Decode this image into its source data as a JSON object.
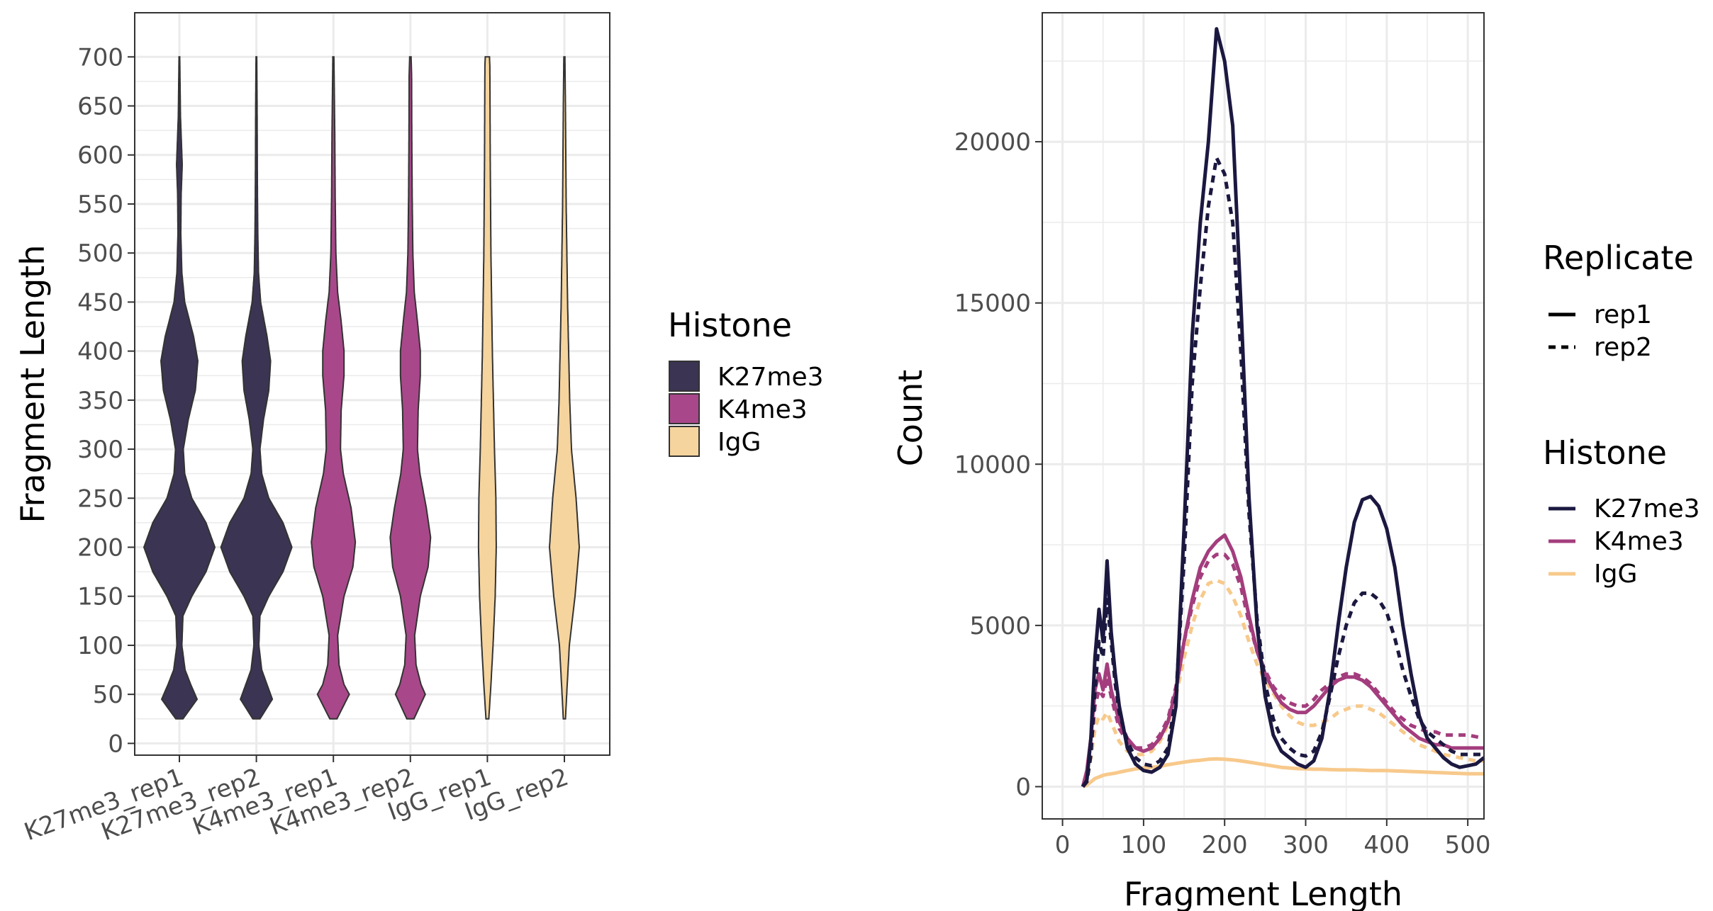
{
  "colors": {
    "K27me3": "#3b3452",
    "K4me3": "#a8488a",
    "IgG": "#f5d49e",
    "line_K27me3": "#1b1840",
    "line_K4me3": "#a33d7d",
    "line_IgG": "#f7c98b",
    "grid": "#ebebeb",
    "panel_border": "#333333"
  },
  "chart_data": [
    {
      "type": "violin",
      "ylabel": "Fragment Length",
      "xlabel": "",
      "ylim": [
        0,
        700
      ],
      "yticks": [
        "0",
        "50",
        "100",
        "150",
        "200",
        "250",
        "300",
        "350",
        "400",
        "450",
        "500",
        "550",
        "600",
        "650",
        "700"
      ],
      "categories": [
        "K27me3_rep1",
        "K27me3_rep2",
        "K4me3_rep1",
        "K4me3_rep2",
        "IgG_rep1",
        "IgG_rep2"
      ],
      "groups": [
        "K27me3",
        "K27me3",
        "K4me3",
        "K4me3",
        "IgG",
        "IgG"
      ],
      "legend": {
        "title": "Histone",
        "entries": [
          "K27me3",
          "K4me3",
          "IgG"
        ]
      },
      "grid": true,
      "range": [
        25,
        700
      ],
      "density_profiles": [
        [
          [
            25,
            0.1
          ],
          [
            45,
            0.5
          ],
          [
            60,
            0.32
          ],
          [
            75,
            0.16
          ],
          [
            100,
            0.07
          ],
          [
            130,
            0.1
          ],
          [
            150,
            0.35
          ],
          [
            175,
            0.75
          ],
          [
            200,
            1.0
          ],
          [
            225,
            0.75
          ],
          [
            250,
            0.35
          ],
          [
            275,
            0.15
          ],
          [
            300,
            0.11
          ],
          [
            330,
            0.25
          ],
          [
            360,
            0.45
          ],
          [
            390,
            0.52
          ],
          [
            415,
            0.4
          ],
          [
            450,
            0.15
          ],
          [
            480,
            0.07
          ],
          [
            520,
            0.04
          ],
          [
            560,
            0.05
          ],
          [
            590,
            0.08
          ],
          [
            610,
            0.06
          ],
          [
            640,
            0.03
          ],
          [
            700,
            0.01
          ]
        ],
        [
          [
            25,
            0.1
          ],
          [
            45,
            0.45
          ],
          [
            60,
            0.3
          ],
          [
            75,
            0.15
          ],
          [
            100,
            0.07
          ],
          [
            130,
            0.1
          ],
          [
            150,
            0.35
          ],
          [
            175,
            0.75
          ],
          [
            200,
            1.0
          ],
          [
            225,
            0.75
          ],
          [
            250,
            0.35
          ],
          [
            275,
            0.15
          ],
          [
            300,
            0.1
          ],
          [
            330,
            0.2
          ],
          [
            360,
            0.35
          ],
          [
            390,
            0.4
          ],
          [
            415,
            0.3
          ],
          [
            450,
            0.12
          ],
          [
            480,
            0.06
          ],
          [
            520,
            0.04
          ],
          [
            560,
            0.03
          ],
          [
            600,
            0.025
          ],
          [
            650,
            0.02
          ],
          [
            700,
            0.01
          ]
        ],
        [
          [
            25,
            0.1
          ],
          [
            50,
            0.45
          ],
          [
            60,
            0.3
          ],
          [
            80,
            0.16
          ],
          [
            110,
            0.12
          ],
          [
            150,
            0.3
          ],
          [
            180,
            0.55
          ],
          [
            205,
            0.62
          ],
          [
            240,
            0.5
          ],
          [
            275,
            0.28
          ],
          [
            300,
            0.2
          ],
          [
            340,
            0.22
          ],
          [
            375,
            0.3
          ],
          [
            400,
            0.3
          ],
          [
            430,
            0.22
          ],
          [
            460,
            0.12
          ],
          [
            500,
            0.07
          ],
          [
            560,
            0.05
          ],
          [
            620,
            0.04
          ],
          [
            700,
            0.015
          ]
        ],
        [
          [
            25,
            0.1
          ],
          [
            50,
            0.42
          ],
          [
            60,
            0.3
          ],
          [
            80,
            0.16
          ],
          [
            110,
            0.12
          ],
          [
            150,
            0.28
          ],
          [
            180,
            0.5
          ],
          [
            210,
            0.57
          ],
          [
            240,
            0.45
          ],
          [
            275,
            0.27
          ],
          [
            300,
            0.2
          ],
          [
            340,
            0.22
          ],
          [
            375,
            0.28
          ],
          [
            400,
            0.28
          ],
          [
            430,
            0.2
          ],
          [
            460,
            0.11
          ],
          [
            500,
            0.07
          ],
          [
            560,
            0.05
          ],
          [
            620,
            0.04
          ],
          [
            680,
            0.035
          ],
          [
            700,
            0.02
          ]
        ],
        [
          [
            25,
            0.04
          ],
          [
            60,
            0.1
          ],
          [
            100,
            0.16
          ],
          [
            150,
            0.22
          ],
          [
            200,
            0.25
          ],
          [
            250,
            0.24
          ],
          [
            300,
            0.2
          ],
          [
            350,
            0.17
          ],
          [
            400,
            0.14
          ],
          [
            450,
            0.12
          ],
          [
            500,
            0.1
          ],
          [
            550,
            0.09
          ],
          [
            600,
            0.08
          ],
          [
            650,
            0.075
          ],
          [
            690,
            0.07
          ],
          [
            700,
            0.06
          ]
        ],
        [
          [
            25,
            0.03
          ],
          [
            60,
            0.08
          ],
          [
            100,
            0.14
          ],
          [
            150,
            0.3
          ],
          [
            200,
            0.42
          ],
          [
            250,
            0.33
          ],
          [
            300,
            0.2
          ],
          [
            350,
            0.15
          ],
          [
            400,
            0.12
          ],
          [
            450,
            0.09
          ],
          [
            500,
            0.07
          ],
          [
            550,
            0.05
          ],
          [
            600,
            0.04
          ],
          [
            650,
            0.03
          ],
          [
            700,
            0.015
          ]
        ]
      ]
    },
    {
      "type": "line",
      "xlabel": "Fragment Length",
      "ylabel": "Count",
      "xlim": [
        -25,
        520
      ],
      "ylim": [
        -1000,
        24000
      ],
      "xticks": [
        "0",
        "100",
        "200",
        "300",
        "400",
        "500"
      ],
      "yticks": [
        "0",
        "5000",
        "10000",
        "15000",
        "20000"
      ],
      "grid": true,
      "legend": [
        {
          "title": "Replicate",
          "entries": [
            "rep1",
            "rep2"
          ]
        },
        {
          "title": "Histone",
          "entries": [
            "K27me3",
            "K4me3",
            "IgG"
          ]
        }
      ],
      "x": [
        25,
        30,
        35,
        40,
        45,
        50,
        55,
        60,
        65,
        70,
        80,
        90,
        100,
        110,
        120,
        130,
        140,
        150,
        160,
        170,
        180,
        190,
        200,
        210,
        220,
        230,
        240,
        250,
        260,
        270,
        280,
        290,
        300,
        310,
        320,
        330,
        340,
        350,
        360,
        370,
        380,
        390,
        400,
        410,
        420,
        430,
        440,
        450,
        460,
        470,
        480,
        490,
        500,
        510,
        520
      ],
      "series": [
        {
          "group": "K27me3",
          "replicate": "rep1",
          "values": [
            0,
            200,
            1500,
            4000,
            5500,
            4500,
            7000,
            4800,
            3500,
            2500,
            1200,
            700,
            500,
            450,
            600,
            1000,
            2500,
            8000,
            14000,
            17500,
            20000,
            23500,
            22500,
            20500,
            15000,
            9000,
            5000,
            2800,
            1600,
            1100,
            900,
            700,
            600,
            800,
            1500,
            3000,
            5000,
            6800,
            8200,
            8900,
            9000,
            8700,
            8000,
            6800,
            5000,
            3500,
            2200,
            1500,
            1200,
            900,
            700,
            600,
            650,
            700,
            900
          ]
        },
        {
          "group": "K27me3",
          "replicate": "rep2",
          "values": [
            0,
            150,
            1000,
            3000,
            4500,
            4000,
            5800,
            4500,
            3200,
            2300,
            1400,
            900,
            700,
            650,
            800,
            1200,
            2800,
            7000,
            12500,
            15500,
            18000,
            19500,
            19000,
            17500,
            13500,
            8500,
            5200,
            3200,
            2100,
            1500,
            1200,
            1000,
            950,
            1100,
            1700,
            2800,
            4000,
            5000,
            5700,
            6000,
            6000,
            5800,
            5400,
            4600,
            3600,
            2800,
            2100,
            1700,
            1500,
            1300,
            1100,
            1000,
            1000,
            1000,
            1000
          ]
        },
        {
          "group": "K4me3",
          "replicate": "rep1",
          "values": [
            0,
            500,
            1500,
            3000,
            3500,
            3000,
            3800,
            3000,
            2500,
            2000,
            1500,
            1200,
            1100,
            1200,
            1500,
            2000,
            3000,
            4500,
            5800,
            6800,
            7300,
            7600,
            7800,
            7300,
            6500,
            5300,
            4200,
            3500,
            3000,
            2600,
            2400,
            2300,
            2300,
            2500,
            2800,
            3100,
            3300,
            3400,
            3400,
            3300,
            3100,
            2800,
            2500,
            2200,
            1900,
            1700,
            1500,
            1400,
            1300,
            1300,
            1200,
            1200,
            1200,
            1200,
            1200
          ]
        },
        {
          "group": "K4me3",
          "replicate": "rep2",
          "values": [
            0,
            400,
            1200,
            2500,
            3000,
            2800,
            3400,
            2800,
            2300,
            1800,
            1400,
            1200,
            1200,
            1300,
            1600,
            2100,
            3100,
            4500,
            5600,
            6500,
            7000,
            7200,
            7200,
            6900,
            6200,
            5100,
            4200,
            3600,
            3100,
            2800,
            2600,
            2500,
            2500,
            2700,
            3000,
            3200,
            3400,
            3500,
            3500,
            3400,
            3200,
            2900,
            2600,
            2300,
            2100,
            1900,
            1800,
            1700,
            1700,
            1600,
            1600,
            1600,
            1600,
            1550,
            1500
          ]
        },
        {
          "group": "IgG",
          "replicate": "rep1",
          "values": [
            0,
            50,
            150,
            250,
            300,
            350,
            380,
            400,
            420,
            450,
            500,
            550,
            580,
            600,
            630,
            680,
            720,
            760,
            800,
            820,
            850,
            860,
            850,
            830,
            800,
            760,
            720,
            680,
            640,
            600,
            580,
            560,
            550,
            540,
            540,
            530,
            520,
            520,
            520,
            510,
            500,
            500,
            500,
            490,
            480,
            470,
            460,
            450,
            440,
            430,
            420,
            410,
            400,
            400,
            400
          ]
        },
        {
          "group": "IgG",
          "replicate": "rep2",
          "values": [
            0,
            300,
            900,
            1800,
            2200,
            2100,
            2300,
            2000,
            1700,
            1400,
            1100,
            1000,
            1000,
            1100,
            1400,
            1900,
            2800,
            4000,
            5000,
            5800,
            6300,
            6400,
            6300,
            5900,
            5300,
            4500,
            3800,
            3300,
            2900,
            2500,
            2200,
            2000,
            1900,
            1900,
            2000,
            2100,
            2300,
            2400,
            2500,
            2500,
            2400,
            2300,
            2100,
            1900,
            1700,
            1500,
            1300,
            1200,
            1100,
            1000,
            950,
            900,
            850,
            800,
            800
          ]
        }
      ]
    }
  ]
}
